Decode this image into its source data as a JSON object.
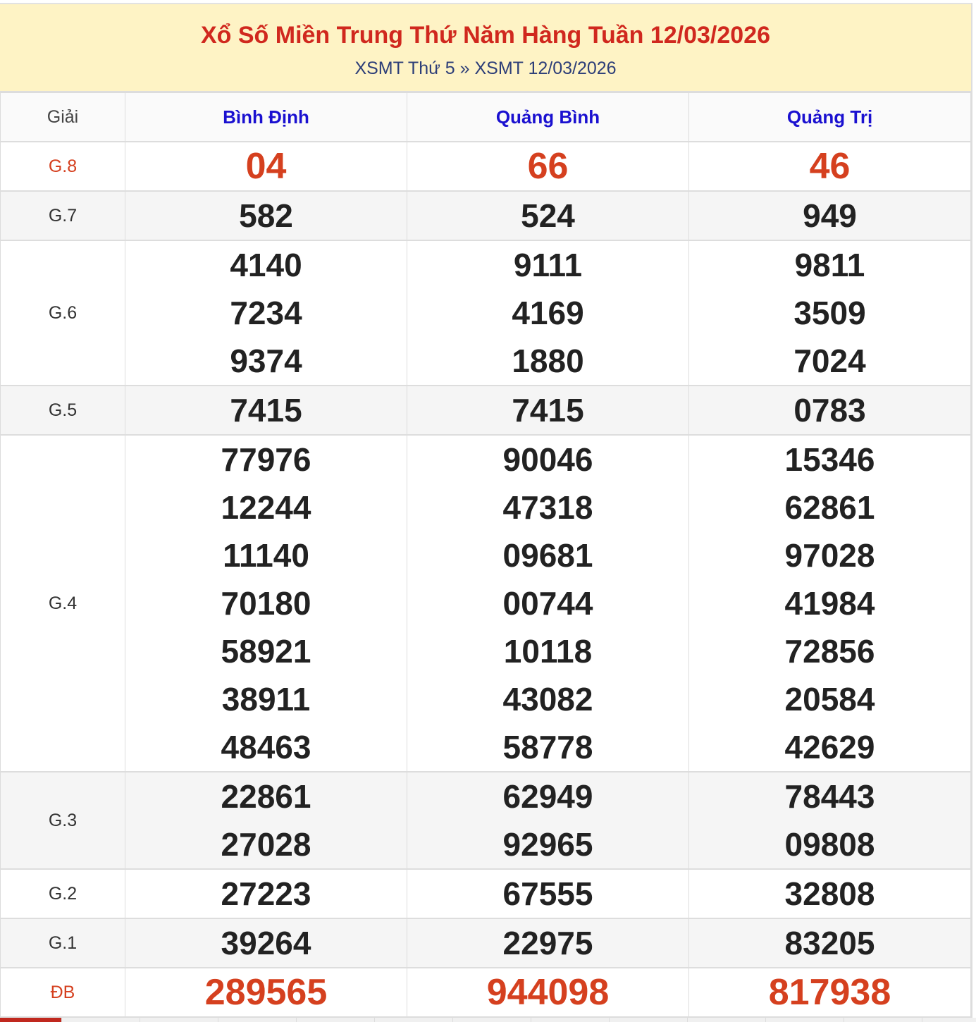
{
  "header": {
    "title": "Xổ Số Miền Trung Thứ Năm Hàng Tuần 12/03/2026",
    "breadcrumb": [
      "XSMT Thứ 5",
      "»",
      "XSMT 12/03/2026"
    ]
  },
  "colors": {
    "title": "#d0281e",
    "province": "#1a10d0",
    "prize_red": "#d5401f",
    "banner_bg": "#fef3c5"
  },
  "table": {
    "label_header": "Giải",
    "provinces": [
      "Bình Định",
      "Quảng Bình",
      "Quảng Trị"
    ],
    "rows": [
      {
        "label": "G.8",
        "red": true,
        "values": [
          [
            "04"
          ],
          [
            "66"
          ],
          [
            "46"
          ]
        ]
      },
      {
        "label": "G.7",
        "values": [
          [
            "582"
          ],
          [
            "524"
          ],
          [
            "949"
          ]
        ]
      },
      {
        "label": "G.6",
        "values": [
          [
            "4140",
            "7234",
            "9374"
          ],
          [
            "9111",
            "4169",
            "1880"
          ],
          [
            "9811",
            "3509",
            "7024"
          ]
        ]
      },
      {
        "label": "G.5",
        "values": [
          [
            "7415"
          ],
          [
            "7415"
          ],
          [
            "0783"
          ]
        ]
      },
      {
        "label": "G.4",
        "values": [
          [
            "77976",
            "12244",
            "11140",
            "70180",
            "58921",
            "38911",
            "48463"
          ],
          [
            "90046",
            "47318",
            "09681",
            "00744",
            "10118",
            "43082",
            "58778"
          ],
          [
            "15346",
            "62861",
            "97028",
            "41984",
            "72856",
            "20584",
            "42629"
          ]
        ]
      },
      {
        "label": "G.3",
        "values": [
          [
            "22861",
            "27028"
          ],
          [
            "62949",
            "92965"
          ],
          [
            "78443",
            "09808"
          ]
        ]
      },
      {
        "label": "G.2",
        "values": [
          [
            "27223"
          ],
          [
            "67555"
          ],
          [
            "32808"
          ]
        ]
      },
      {
        "label": "G.1",
        "values": [
          [
            "39264"
          ],
          [
            "22975"
          ],
          [
            "83205"
          ]
        ]
      },
      {
        "label": "ĐB",
        "red": true,
        "values": [
          [
            "289565"
          ],
          [
            "944098"
          ],
          [
            "817938"
          ]
        ]
      }
    ]
  }
}
